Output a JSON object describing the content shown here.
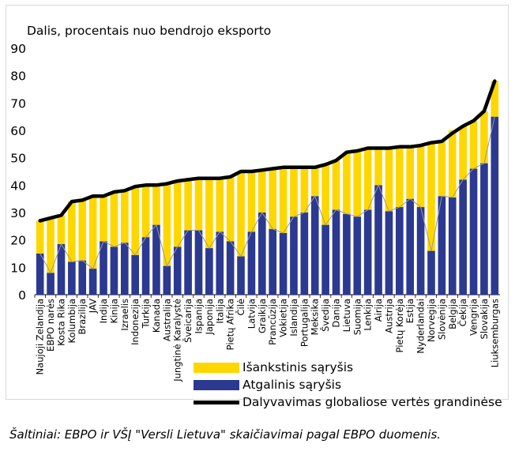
{
  "chart_data": {
    "type": "bar",
    "stacked": true,
    "ylabel": "Dalis, procentais nuo bendrojo eksporto",
    "ylim": [
      0,
      90
    ],
    "yticks": [
      0,
      10,
      20,
      30,
      40,
      50,
      60,
      70,
      80,
      90
    ],
    "grid": false,
    "legend_position": "bottom",
    "categories": [
      "Naujoji Zelandija",
      "EBPO narės",
      "Kosta Rika",
      "Kolumbija",
      "Brazilija",
      "JAV",
      "Indija",
      "Kinija",
      "Izraelis",
      "Indonezija",
      "Turkija",
      "Kanada",
      "Australija",
      "Jungtinė Karalystė",
      "Šveicarija",
      "Ispanija",
      "Japonija",
      "Italija",
      "Pietų Afrika",
      "Čilė",
      "Latvija",
      "Graikija",
      "Prancūzija",
      "Vokietija",
      "Islandija",
      "Portugalija",
      "Meksika",
      "Švedija",
      "Danija",
      "Lietuva",
      "Suomija",
      "Lenkija",
      "Airija",
      "Austrija",
      "Pietų Korėja",
      "Estija",
      "Nyderlandai",
      "Norvegija",
      "Slovėnija",
      "Belgija",
      "Čekija",
      "Vengrija",
      "Slovakija",
      "Liuksemburgas"
    ],
    "series": [
      {
        "name": "Atgalinis sąryšis",
        "color": "#2b3990",
        "values": [
          15,
          8,
          18.5,
          12,
          12.5,
          9.5,
          19.5,
          17.5,
          19,
          14.5,
          21,
          25.5,
          10.5,
          17.5,
          23.5,
          23.5,
          17,
          23,
          19.5,
          14,
          23,
          30,
          24,
          22.5,
          28.5,
          30,
          36,
          25.5,
          31,
          29.5,
          28.5,
          31,
          40,
          30.5,
          32,
          35,
          32,
          16,
          36,
          35.5,
          42,
          46,
          48,
          65
        ]
      },
      {
        "name": "Išankstinis sąryšis",
        "color": "#ffd700",
        "values": [
          12,
          20,
          10.5,
          22,
          22,
          26.5,
          16.5,
          20,
          19,
          25,
          19,
          14.5,
          30,
          24,
          18.5,
          19,
          25.5,
          19.5,
          23.5,
          31,
          22,
          15.5,
          22,
          24,
          18,
          16.5,
          10.5,
          22,
          18,
          22.5,
          24,
          22.5,
          13.5,
          23,
          22,
          19,
          22.5,
          40,
          20,
          24.5,
          19.5,
          17.5,
          19,
          13
        ]
      },
      {
        "name": "Dalyvavimas globaliose vertės grandinėse",
        "color": "#000000",
        "type": "line",
        "values": [
          27,
          28,
          29,
          34,
          34.5,
          36,
          36,
          37.5,
          38,
          39.5,
          40,
          40,
          40.5,
          41.5,
          42,
          42.5,
          42.5,
          42.5,
          43,
          45,
          45,
          45.5,
          46,
          46.5,
          46.5,
          46.5,
          46.5,
          47.5,
          49,
          52,
          52.5,
          53.5,
          53.5,
          53.5,
          54,
          54,
          54.5,
          55.5,
          56,
          59,
          61.5,
          63.5,
          67,
          78
        ]
      }
    ]
  },
  "legend": {
    "forward": "Išankstinis sąryšis",
    "backward": "Atgalinis sąryšis",
    "gvc": "Dalyvavimas globaliose vertės grandinėse"
  },
  "source_text": "Šaltiniai:  EBPO ir VŠĮ \"Versli Lietuva\" skaičiavimai pagal EBPO duomenis."
}
